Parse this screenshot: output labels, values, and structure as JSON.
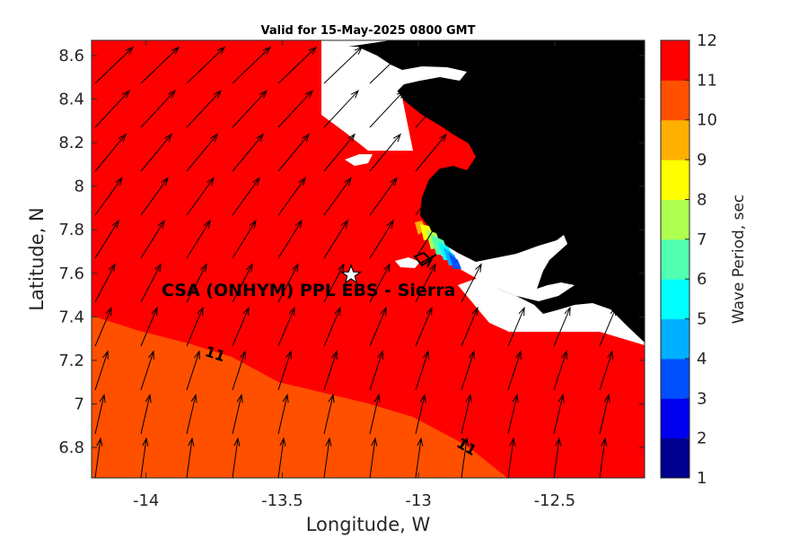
{
  "title": "Valid for 15-May-2025 0800 GMT",
  "xlabel": "Longitude, W",
  "ylabel": "Latitude, N",
  "colorbar_label": "Wave Period, sec",
  "site_label": "CSA (ONHYM) PPL EBS  - Sierra",
  "contour_labels": [
    "11",
    "11"
  ],
  "colors": {
    "period_12": "#ff0000",
    "period_11": "#ff5000",
    "land": "#000000",
    "star": "#ffffff"
  },
  "chart_data": {
    "type": "heatmap",
    "title": "Valid for 15-May-2025 0800 GMT",
    "xlabel": "Longitude, W",
    "ylabel": "Latitude, N",
    "xlim": [
      -14.2,
      -12.17
    ],
    "ylim": [
      6.66,
      8.67
    ],
    "xticks": [
      -14,
      -13.5,
      -13,
      -12.5
    ],
    "xtick_labels": [
      "-14",
      "-13.5",
      "-13",
      "-12.5"
    ],
    "yticks": [
      6.8,
      7.0,
      7.2,
      7.4,
      7.6,
      7.8,
      8.0,
      8.2,
      8.4,
      8.6
    ],
    "ytick_labels": [
      "6.8",
      "7",
      "7.2",
      "7.4",
      "7.6",
      "7.8",
      "8",
      "8.2",
      "8.4",
      "8.6"
    ],
    "colorbar": {
      "label": "Wave Period, sec",
      "range": [
        1,
        12
      ],
      "ticks": [
        "1",
        "2",
        "3",
        "4",
        "5",
        "6",
        "7",
        "8",
        "9",
        "10",
        "11",
        "12"
      ],
      "colors": [
        "#00008f",
        "#0000ef",
        "#0050ff",
        "#00afff",
        "#00ffff",
        "#50ffaf",
        "#afff50",
        "#ffff00",
        "#ffaf00",
        "#ff5000",
        "#ff0000"
      ]
    },
    "contour_level": 11,
    "site": {
      "name": "CSA (ONHYM) PPL EBS  - Sierra",
      "lon": -13.23,
      "lat": 7.59
    },
    "wave_direction": "toward north-northeast",
    "grid": false
  }
}
